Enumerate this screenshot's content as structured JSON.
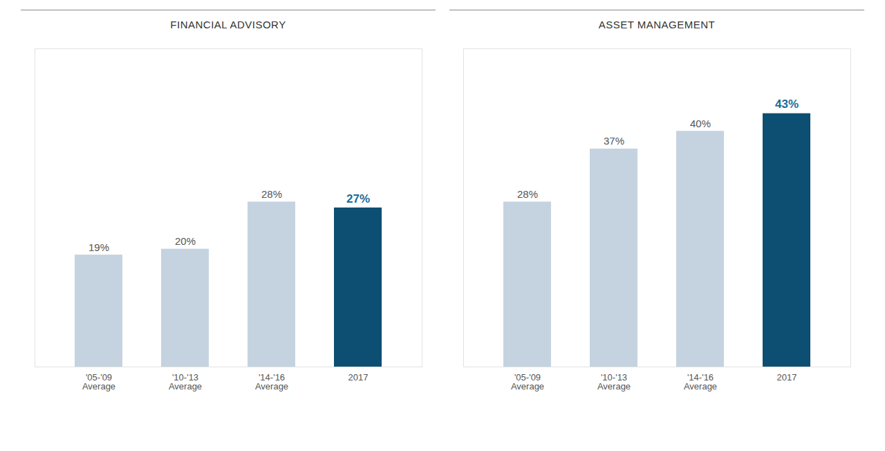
{
  "chart_data": [
    {
      "type": "bar",
      "title": "FINANCIAL ADVISORY",
      "categories": [
        "'05-'09\nAverage",
        "'10-'13\nAverage",
        "'14-'16\nAverage",
        "2017"
      ],
      "values": [
        19,
        20,
        28,
        27
      ],
      "value_labels": [
        "19%",
        "20%",
        "28%",
        "27%"
      ],
      "colors": [
        "#c5d3e0",
        "#c5d3e0",
        "#c5d3e0",
        "#0d4f72"
      ],
      "ylim": [
        0,
        54
      ],
      "grid": false,
      "data_labels": true,
      "tick_labels": "x"
    },
    {
      "type": "bar",
      "title": "ASSET MANAGEMENT",
      "categories": [
        "'05-'09\nAverage",
        "'10-'13\nAverage",
        "'14-'16\nAverage",
        "2017"
      ],
      "values": [
        28,
        37,
        40,
        43
      ],
      "value_labels": [
        "28%",
        "37%",
        "40%",
        "43%"
      ],
      "colors": [
        "#c5d3e0",
        "#c5d3e0",
        "#c5d3e0",
        "#0d4f72"
      ],
      "ylim": [
        0,
        54
      ],
      "grid": false,
      "data_labels": true,
      "tick_labels": "x"
    }
  ]
}
